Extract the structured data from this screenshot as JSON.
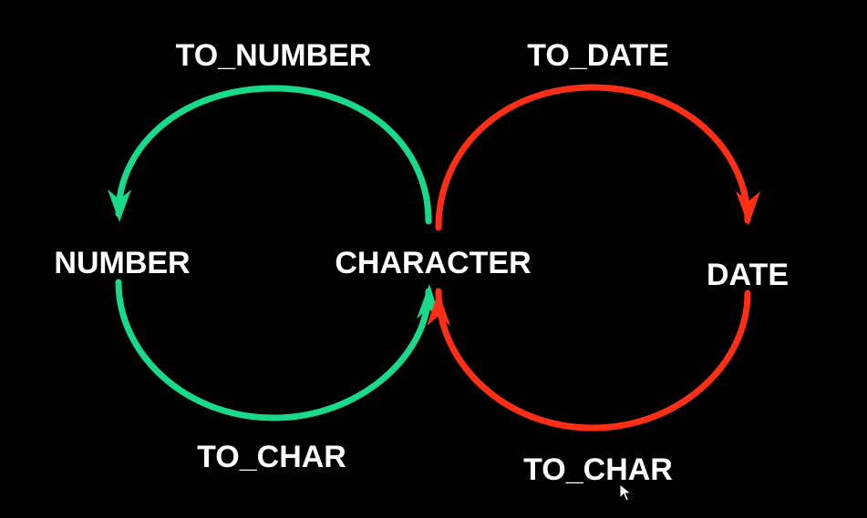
{
  "diagram": {
    "nodes": {
      "number": "NUMBER",
      "character": "CHARACTER",
      "date": "DATE"
    },
    "edges": {
      "character_to_number": "TO_NUMBER",
      "number_to_character": "TO_CHAR",
      "character_to_date": "TO_DATE",
      "date_to_character": "TO_CHAR"
    }
  },
  "colors": {
    "background": "#000000",
    "number_loop": "#19d98a",
    "date_loop": "#ff2f17",
    "text": "#ffffff"
  },
  "icons": {
    "cursor": "mouse-pointer-icon"
  }
}
